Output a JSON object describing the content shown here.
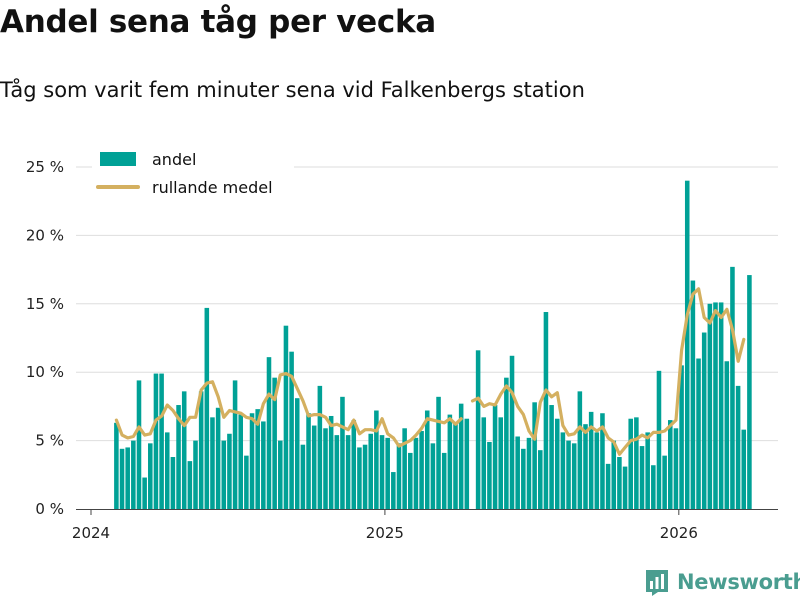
{
  "chart_data": {
    "type": "bar",
    "title": "Andel sena tåg per vecka",
    "subtitle": "Tåg som varit fem minuter sena vid Falkenbergs station",
    "xlabel": "",
    "ylabel": "",
    "ylim": [
      0,
      26
    ],
    "yticks": [
      0,
      5,
      10,
      15,
      20,
      25
    ],
    "ytick_labels": [
      "0 %",
      "5 %",
      "10 %",
      "15 %",
      "20 %",
      "25 %"
    ],
    "xticks": [
      {
        "label": "2024",
        "week": 0
      },
      {
        "label": "2025",
        "week": 52
      },
      {
        "label": "2026",
        "week": 104
      }
    ],
    "bar_color": "#00a196",
    "line_color": "#d4b060",
    "legend": [
      {
        "label": "andel",
        "kind": "bar"
      },
      {
        "label": "rullande medel",
        "kind": "line"
      }
    ],
    "series": [
      {
        "name": "andel",
        "start_week": 4,
        "values": [
          6.3,
          4.4,
          4.5,
          5,
          9.4,
          2.3,
          4.8,
          9.9,
          9.9,
          5.6,
          3.8,
          7.6,
          8.6,
          3.5,
          5,
          8.6,
          14.7,
          6.7,
          7.4,
          5,
          5.5,
          9.4,
          6.9,
          3.9,
          7,
          7.3,
          6.4,
          11.1,
          9.6,
          5,
          13.4,
          11.5,
          8.1,
          4.7,
          7,
          6.1,
          9,
          5.9,
          6.8,
          5.4,
          8.2,
          5.4,
          6.5,
          4.5,
          4.7,
          5.5,
          7.2,
          5.4,
          5.2,
          2.7,
          4.8,
          5.9,
          4.1,
          5.2,
          5.7,
          7.2,
          4.8,
          8.2,
          4.1,
          6.9,
          6.3,
          7.7,
          6.6,
          null,
          11.6,
          6.7,
          4.9,
          7.6,
          6.7,
          9.6,
          11.2,
          5.3,
          4.4,
          5.2,
          7.8,
          4.3,
          14.4,
          7.6,
          6.6,
          5.6,
          5,
          4.8,
          8.6,
          6.2,
          7.1,
          5.6,
          7,
          3.3,
          5,
          3.8,
          3.1,
          6.6,
          6.7,
          4.6,
          5.6,
          3.2,
          10.1,
          3.9,
          6.5,
          5.9,
          10.5,
          24,
          16.7,
          11,
          12.9,
          15,
          15.1,
          15.1,
          10.8,
          17.7,
          9,
          5.8,
          17.1
        ]
      },
      {
        "name": "rullande medel",
        "start_week": 4,
        "values": [
          6.5,
          5.4,
          5.2,
          5.3,
          6,
          5.4,
          5.5,
          6.5,
          6.8,
          7.6,
          7.2,
          6.6,
          6.1,
          6.7,
          6.7,
          8.7,
          9.2,
          9.3,
          8.2,
          6.7,
          7.2,
          7.1,
          7,
          6.7,
          6.6,
          6.2,
          7.7,
          8.4,
          8,
          9.8,
          9.9,
          9.7,
          8.8,
          7.9,
          6.8,
          6.9,
          6.9,
          6.7,
          6.1,
          6.2,
          6,
          5.8,
          6.5,
          5.5,
          5.8,
          5.8,
          5.7,
          6.6,
          5.5,
          5.2,
          4.6,
          4.8,
          5,
          5.4,
          5.9,
          6.6,
          6.5,
          6.4,
          6.3,
          6.6,
          6.2,
          6.6,
          null,
          7.9,
          8.1,
          7.5,
          7.7,
          7.6,
          8.4,
          9,
          8.5,
          7.5,
          6.9,
          5.7,
          5.1,
          7.8,
          8.7,
          8.2,
          8.5,
          6.1,
          5.4,
          5.5,
          6,
          5.6,
          6,
          5.7,
          6,
          5.2,
          4.9,
          4,
          4.5,
          5,
          5.1,
          5.4,
          5.2,
          5.6,
          5.6,
          5.7,
          6.1,
          6.5,
          11.6,
          14.2,
          15.7,
          16.1,
          14,
          13.6,
          14.5,
          14,
          14.6,
          13.1,
          10.8,
          12.4
        ]
      }
    ]
  },
  "brand": {
    "name": "Newsworthy",
    "icon": "bar-chart-logo-icon",
    "color": "#4a9d90"
  }
}
